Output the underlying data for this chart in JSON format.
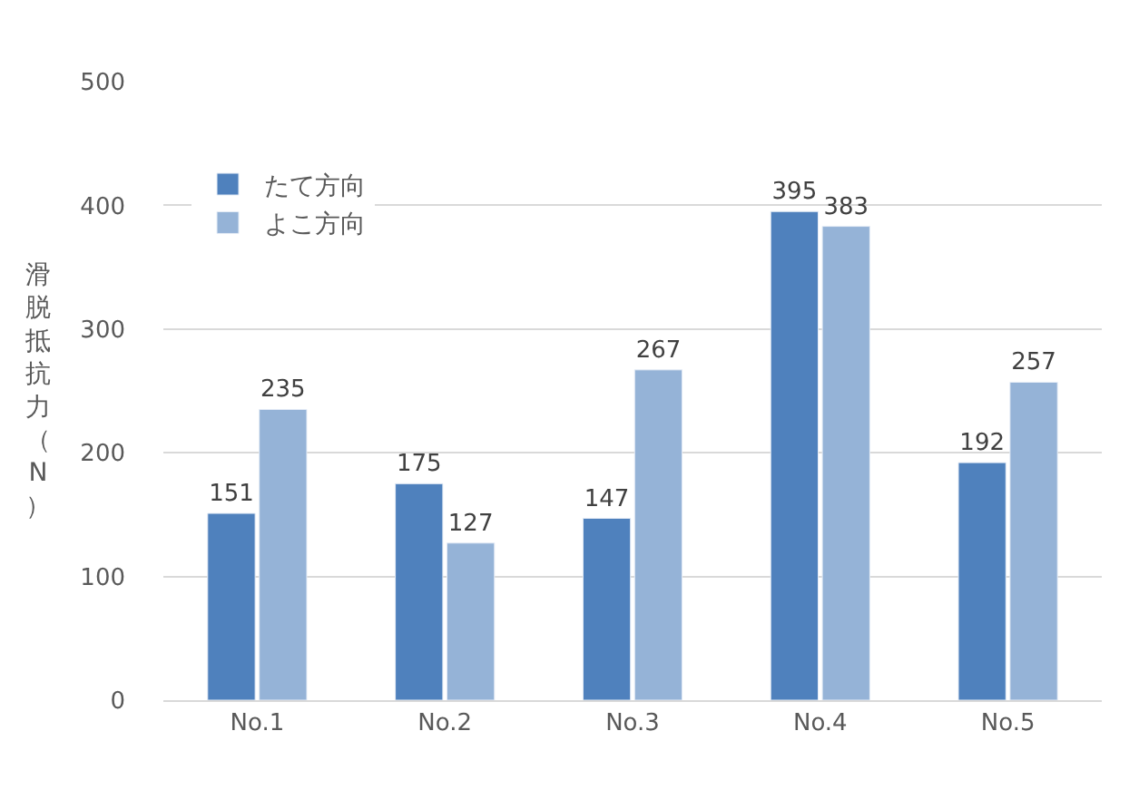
{
  "chart_data": {
    "type": "bar",
    "ylabel": "滑脱抵抗力（N）",
    "categories": [
      "No.1",
      "No.2",
      "No.3",
      "No.4",
      "No.5"
    ],
    "series": [
      {
        "name": "たて方向",
        "color": "#4f81bd",
        "values": [
          151,
          175,
          147,
          395,
          192
        ]
      },
      {
        "name": "よこ方向",
        "color": "#95b3d7",
        "values": [
          235,
          127,
          267,
          383,
          257
        ]
      }
    ],
    "ylim": [
      0,
      500
    ],
    "yticks": [
      0,
      100,
      200,
      300,
      400,
      500
    ],
    "grid": "y",
    "legend": "top left",
    "data_labels": true
  }
}
